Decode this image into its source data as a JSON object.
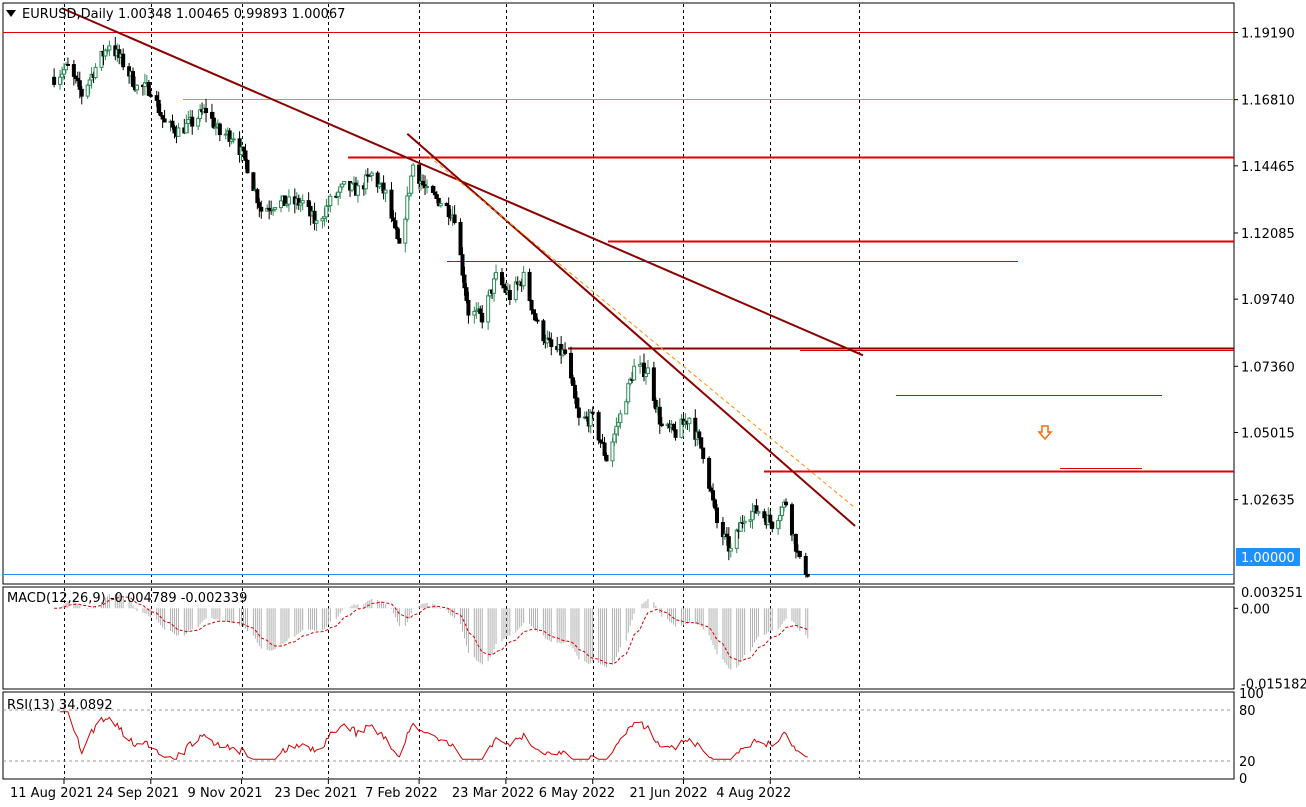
{
  "header": {
    "symbol_label": "EURUSD,Daily",
    "ohlc": "1.00348 1.00465 0.99893 1.00067"
  },
  "current_price": "1.00000",
  "colors": {
    "bull": "#2e8b57",
    "bear": "#000000",
    "resistance": "#e00000",
    "trend": "#8b0000",
    "trend_dashed": "#ff8c00",
    "orange_level": "#ff8c00",
    "price_line": "#1e90ff",
    "rsi_line": "#d40000",
    "macd_hist": "#b0b0b0",
    "macd_signal": "#d40000",
    "grid": "#000000"
  },
  "chart_data": [
    {
      "type": "candlestick",
      "title": "EURUSD,Daily",
      "x_ticks": [
        "11 Aug 2021",
        "24 Sep 2021",
        "9 Nov 2021",
        "23 Dec 2021",
        "7 Feb 2022",
        "23 Mar 2022",
        "6 May 2022",
        "21 Jun 2022",
        "4 Aug 2022"
      ],
      "y_ticks": [
        "1.19190",
        "1.16810",
        "1.14465",
        "1.12085",
        "1.09740",
        "1.07360",
        "1.05015",
        "1.02635",
        "1.00000"
      ],
      "ylim": [
        0.9968,
        1.202
      ],
      "close_path_weekly": [
        [
          "2021-08-06",
          1.176
        ],
        [
          "2021-08-13",
          1.1795
        ],
        [
          "2021-08-20",
          1.17
        ],
        [
          "2021-08-27",
          1.1795
        ],
        [
          "2021-09-03",
          1.188
        ],
        [
          "2021-09-10",
          1.181
        ],
        [
          "2021-09-17",
          1.1725
        ],
        [
          "2021-09-24",
          1.172
        ],
        [
          "2021-10-01",
          1.1595
        ],
        [
          "2021-10-08",
          1.157
        ],
        [
          "2021-10-15",
          1.16
        ],
        [
          "2021-10-22",
          1.1645
        ],
        [
          "2021-10-29",
          1.156
        ],
        [
          "2021-11-05",
          1.1555
        ],
        [
          "2021-11-12",
          1.1445
        ],
        [
          "2021-11-19",
          1.129
        ],
        [
          "2021-11-26",
          1.1315
        ],
        [
          "2021-12-03",
          1.1315
        ],
        [
          "2021-12-10",
          1.1315
        ],
        [
          "2021-12-17",
          1.124
        ],
        [
          "2021-12-24",
          1.132
        ],
        [
          "2021-12-31",
          1.137
        ],
        [
          "2022-01-07",
          1.136
        ],
        [
          "2022-01-14",
          1.1415
        ],
        [
          "2022-01-21",
          1.1345
        ],
        [
          "2022-01-28",
          1.115
        ],
        [
          "2022-02-04",
          1.145
        ],
        [
          "2022-02-11",
          1.135
        ],
        [
          "2022-02-18",
          1.132
        ],
        [
          "2022-02-25",
          1.127
        ],
        [
          "2022-03-04",
          1.093
        ],
        [
          "2022-03-11",
          1.091
        ],
        [
          "2022-03-18",
          1.105
        ],
        [
          "2022-03-25",
          1.0985
        ],
        [
          "2022-04-01",
          1.105
        ],
        [
          "2022-04-08",
          1.088
        ],
        [
          "2022-04-15",
          1.08
        ],
        [
          "2022-04-22",
          1.078
        ],
        [
          "2022-04-29",
          1.0545
        ],
        [
          "2022-05-06",
          1.055
        ],
        [
          "2022-05-13",
          1.041
        ],
        [
          "2022-05-20",
          1.056
        ],
        [
          "2022-05-27",
          1.073
        ],
        [
          "2022-06-03",
          1.072
        ],
        [
          "2022-06-10",
          1.052
        ],
        [
          "2022-06-17",
          1.05
        ],
        [
          "2022-06-24",
          1.0555
        ],
        [
          "2022-07-01",
          1.043
        ],
        [
          "2022-07-08",
          1.018
        ],
        [
          "2022-07-15",
          1.008
        ],
        [
          "2022-07-22",
          1.021
        ],
        [
          "2022-07-29",
          1.0225
        ],
        [
          "2022-08-05",
          1.018
        ],
        [
          "2022-08-12",
          1.0255
        ],
        [
          "2022-08-19",
          1.004
        ],
        [
          "2022-08-23",
          1.0007
        ]
      ],
      "horizontal_levels": [
        {
          "price": 1.1919,
          "color": "resistance",
          "style": "thin"
        },
        {
          "price": 1.1683,
          "color": "orange_level",
          "style": "thin"
        },
        {
          "price": 1.1477,
          "color": "resistance",
          "style": "thick"
        },
        {
          "price": 1.118,
          "color": "resistance",
          "style": "thick"
        },
        {
          "price": 1.1109,
          "color": "resistance",
          "style": "thin"
        },
        {
          "price": 1.0802,
          "color": "trend",
          "style": "thick"
        },
        {
          "price": 1.0794,
          "color": "resistance",
          "style": "thin"
        },
        {
          "price": 1.0635,
          "color": "resistance",
          "style": "thin"
        },
        {
          "price": 1.0365,
          "color": "resistance",
          "style": "thick"
        },
        {
          "price": 1.0375,
          "color": "resistance",
          "style": "thin"
        }
      ]
    },
    {
      "type": "histogram",
      "title": "MACD(12,26,9) -0.004789 -0.002339",
      "y_ticks": [
        "0.003251",
        "0.00",
        "-0.015182"
      ],
      "ylim": [
        -0.0161,
        0.0041
      ]
    },
    {
      "type": "line",
      "title": "RSI(13) 34.0892",
      "y_ticks": [
        "100",
        "80",
        "20",
        "0"
      ],
      "ylim": [
        0,
        100
      ],
      "levels": [
        80,
        20
      ]
    }
  ]
}
